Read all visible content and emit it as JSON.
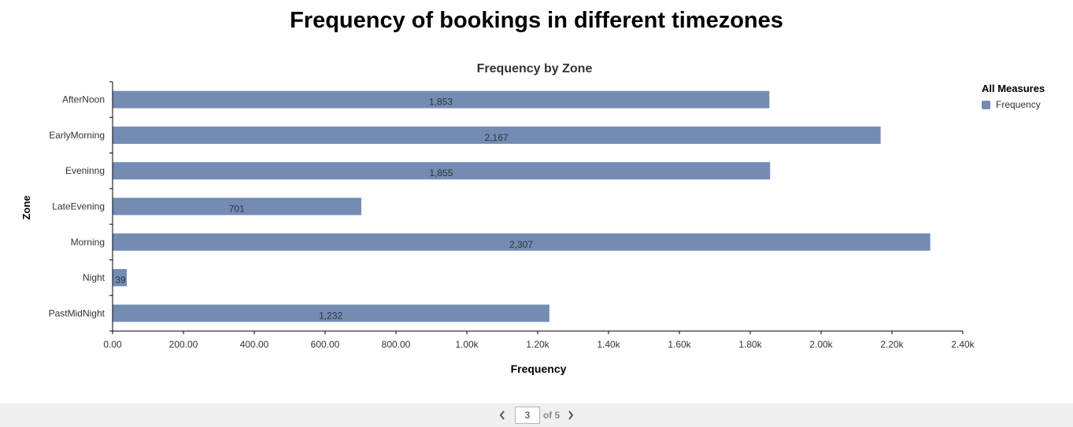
{
  "page": {
    "title": "Frequency of bookings in different timezones"
  },
  "chart_data": {
    "type": "bar",
    "orientation": "horizontal",
    "title": "Frequency by Zone",
    "xlabel": "Frequency",
    "ylabel": "Zone",
    "categories": [
      "AfterNoon",
      "EarlyMorning",
      "Eveninng",
      "LateEvening",
      "Morning",
      "Night",
      "PastMidNight"
    ],
    "series": [
      {
        "name": "Frequency",
        "values": [
          1853,
          2167,
          1855,
          701,
          2307,
          39,
          1232
        ],
        "value_labels": [
          "1,853",
          "2,167",
          "1,855",
          "701",
          "2,307",
          "39",
          "1,232"
        ],
        "color": "#748cb4"
      }
    ],
    "xlim": [
      0,
      2400
    ],
    "xticks": [
      0,
      200,
      400,
      600,
      800,
      1000,
      1200,
      1400,
      1600,
      1800,
      2000,
      2200,
      2400
    ],
    "xtick_labels": [
      "0.00",
      "200.00",
      "400.00",
      "600.00",
      "800.00",
      "1.00k",
      "1.20k",
      "1.40k",
      "1.60k",
      "1.80k",
      "2.00k",
      "2.20k",
      "2.40k"
    ],
    "grid": false,
    "legend": {
      "title": "All Measures",
      "position": "top-right"
    }
  },
  "pager": {
    "current_page": "3",
    "of_label": "of 5"
  }
}
